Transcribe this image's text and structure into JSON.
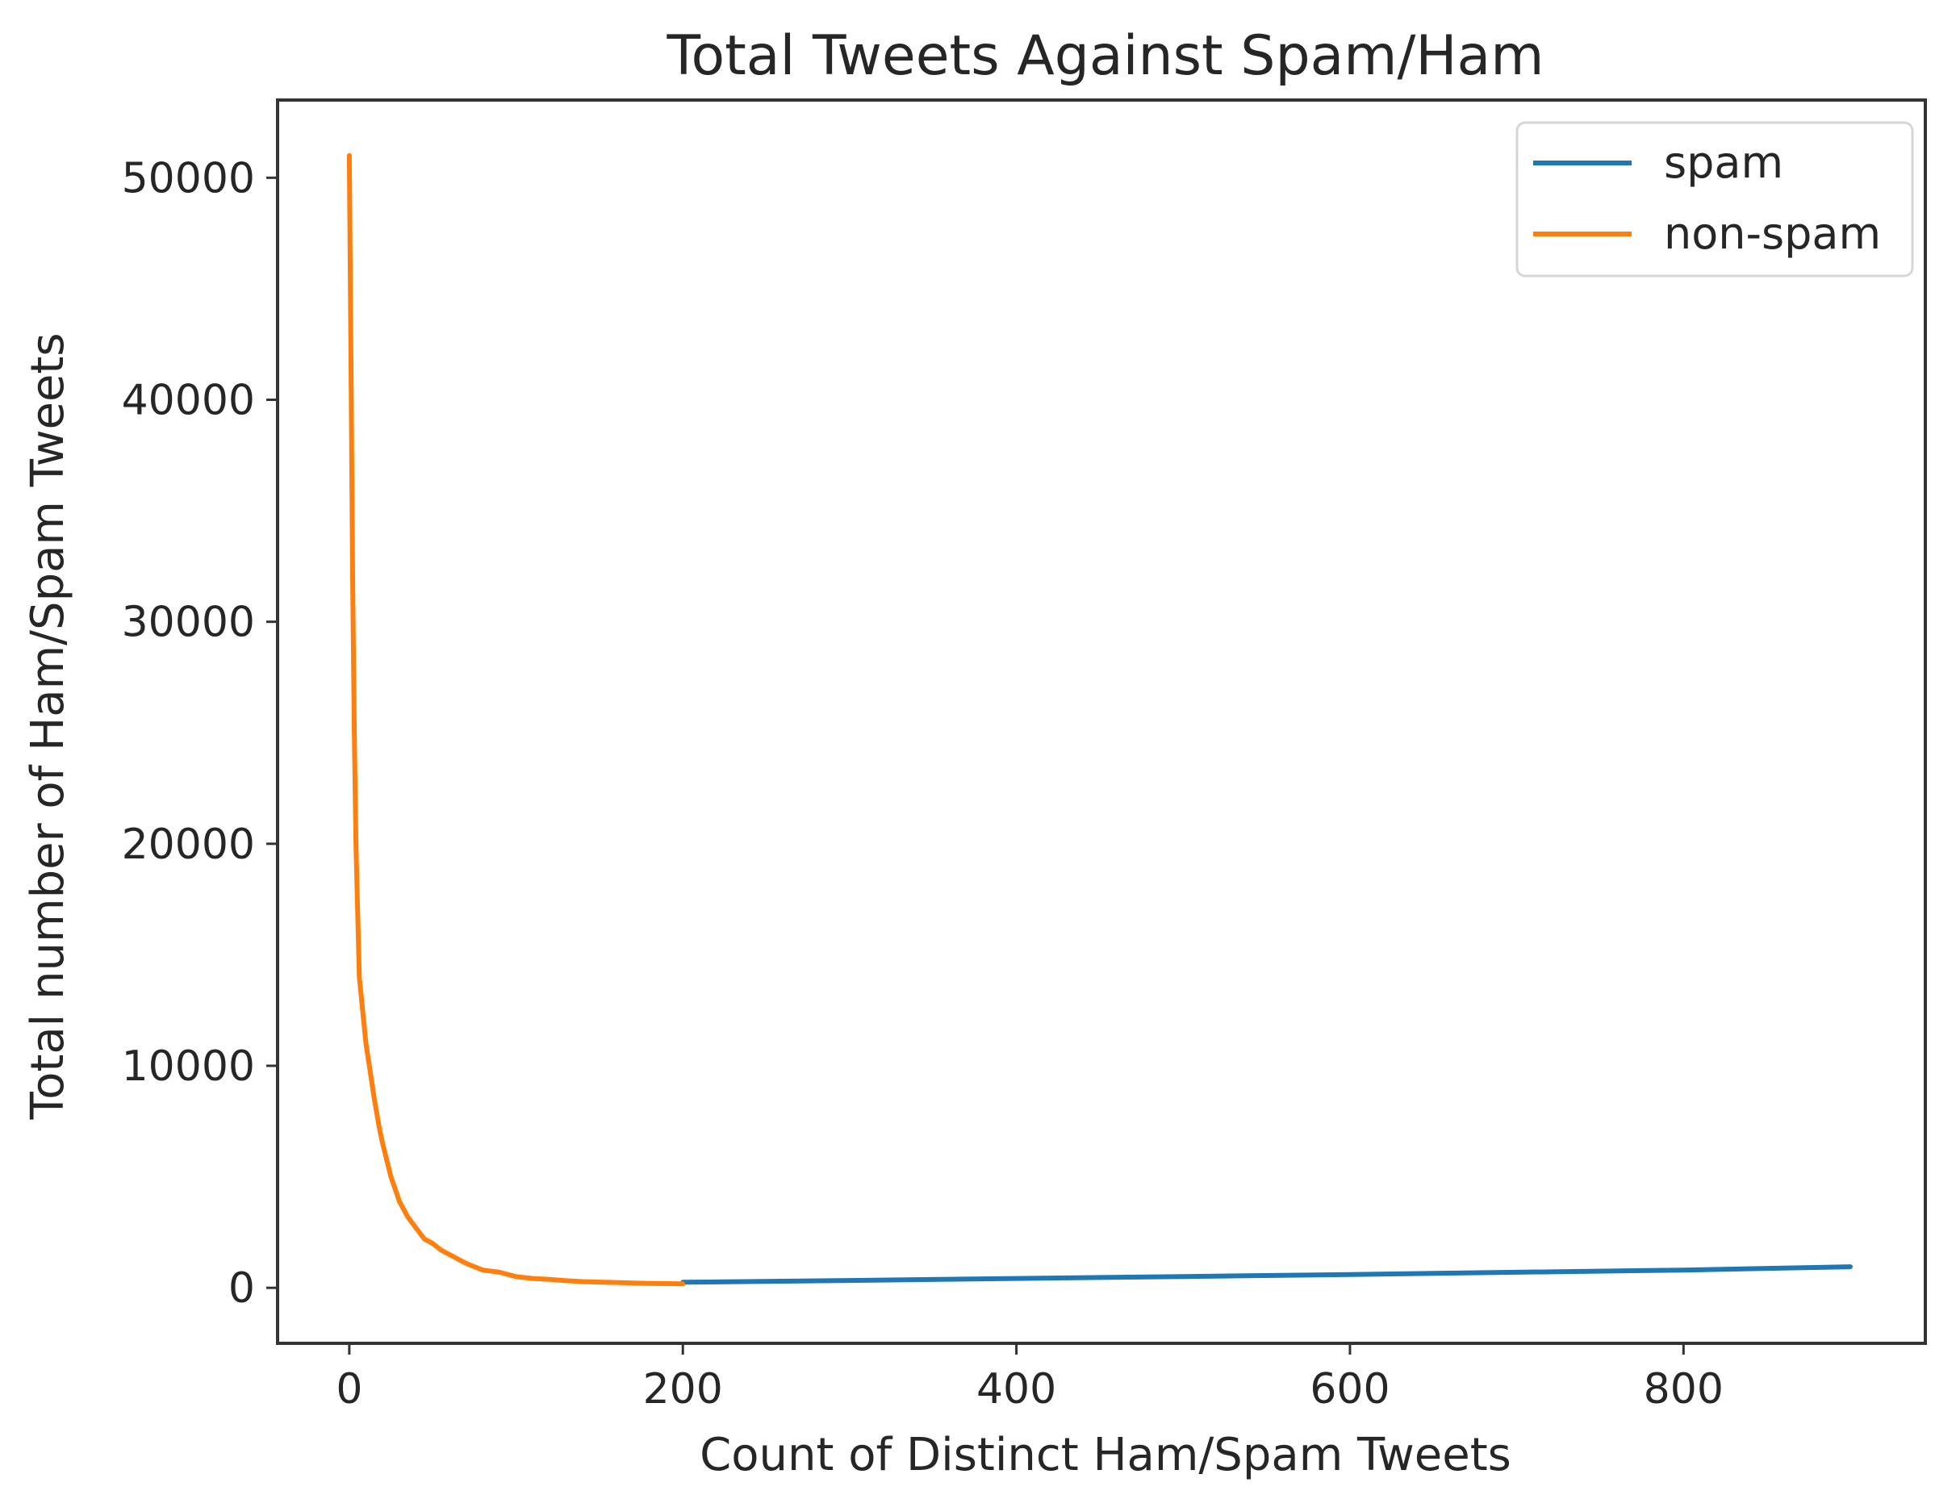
{
  "chart_data": {
    "type": "line",
    "title": "Total Tweets Against Spam/Ham",
    "xlabel": "Count of Distinct Ham/Spam Tweets",
    "ylabel": "Total number of Ham/Spam Tweets",
    "xlim": [
      -43,
      945
    ],
    "ylim": [
      -2500,
      53500
    ],
    "xticks": [
      0,
      200,
      400,
      600,
      800
    ],
    "yticks": [
      0,
      10000,
      20000,
      30000,
      40000,
      50000
    ],
    "grid": false,
    "legend_position": "top-right",
    "series": [
      {
        "name": "spam",
        "color": "#1f77b4",
        "x": [
          200,
          300,
          400,
          500,
          600,
          700,
          800,
          900
        ],
        "y": [
          250,
          330,
          420,
          510,
          600,
          700,
          800,
          950
        ]
      },
      {
        "name": "non-spam",
        "color": "#ff7f0e",
        "x": [
          0,
          1,
          2,
          3,
          4,
          5,
          6,
          8,
          10,
          12,
          15,
          18,
          20,
          25,
          30,
          35,
          40,
          45,
          50,
          55,
          60,
          70,
          80,
          90,
          100,
          110,
          120,
          130,
          140,
          150,
          160,
          170,
          180,
          190,
          200
        ],
        "y": [
          51000,
          42000,
          32000,
          25000,
          20000,
          17000,
          14000,
          12500,
          11000,
          10000,
          8500,
          7200,
          6500,
          5000,
          3900,
          3200,
          2700,
          2200,
          2000,
          1700,
          1500,
          1100,
          800,
          700,
          500,
          420,
          380,
          320,
          280,
          260,
          240,
          220,
          200,
          190,
          180
        ]
      }
    ]
  }
}
